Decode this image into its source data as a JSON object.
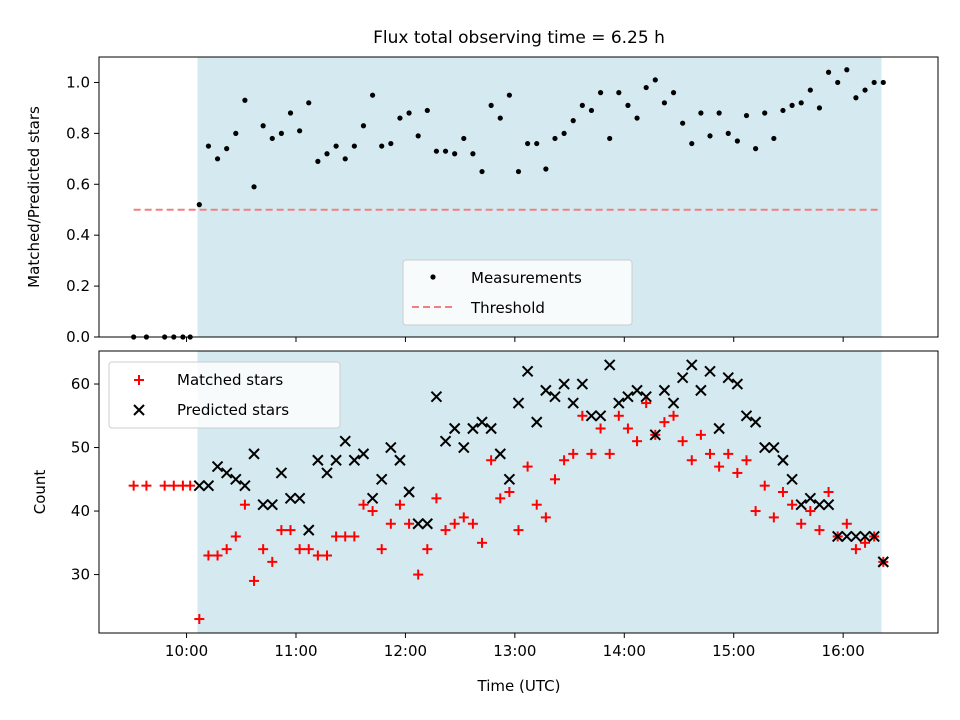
{
  "figure": {
    "title": "Flux total observing time = 6.25 h",
    "xlabel": "Time (UTC)",
    "x_ticks": [
      "10:00",
      "11:00",
      "12:00",
      "13:00",
      "14:00",
      "15:00",
      "16:00"
    ],
    "shade_color": "#d4eaf0",
    "observing_window": [
      "10:06",
      "16:21"
    ]
  },
  "chart_data": [
    {
      "type": "scatter",
      "title": "Flux total observing time = 6.25 h",
      "ylabel": "Matched/Predicted stars",
      "xlabel": "",
      "xlim": [
        "09:12",
        "16:52"
      ],
      "ylim": [
        0,
        1.1
      ],
      "y_ticks": [
        "0.0",
        "0.2",
        "0.4",
        "0.6",
        "0.8",
        "1.0"
      ],
      "grid": false,
      "legend_position": "lower-center",
      "series": [
        {
          "name": "Measurements",
          "color": "#000000",
          "marker": "dot",
          "points": [
            [
              "09:31",
              0.0
            ],
            [
              "09:38",
              0.0
            ],
            [
              "09:48",
              0.0
            ],
            [
              "09:53",
              0.0
            ],
            [
              "09:58",
              0.0
            ],
            [
              "10:02",
              0.0
            ],
            [
              "10:07",
              0.52
            ],
            [
              "10:12",
              0.75
            ],
            [
              "10:17",
              0.7
            ],
            [
              "10:22",
              0.74
            ],
            [
              "10:27",
              0.8
            ],
            [
              "10:32",
              0.93
            ],
            [
              "10:37",
              0.59
            ],
            [
              "10:42",
              0.83
            ],
            [
              "10:47",
              0.78
            ],
            [
              "10:52",
              0.8
            ],
            [
              "10:57",
              0.88
            ],
            [
              "11:02",
              0.81
            ],
            [
              "11:07",
              0.92
            ],
            [
              "11:12",
              0.69
            ],
            [
              "11:17",
              0.72
            ],
            [
              "11:22",
              0.75
            ],
            [
              "11:27",
              0.7
            ],
            [
              "11:32",
              0.75
            ],
            [
              "11:37",
              0.83
            ],
            [
              "11:42",
              0.95
            ],
            [
              "11:47",
              0.75
            ],
            [
              "11:52",
              0.76
            ],
            [
              "11:57",
              0.86
            ],
            [
              "12:02",
              0.88
            ],
            [
              "12:07",
              0.79
            ],
            [
              "12:12",
              0.89
            ],
            [
              "12:17",
              0.73
            ],
            [
              "12:22",
              0.73
            ],
            [
              "12:27",
              0.72
            ],
            [
              "12:32",
              0.78
            ],
            [
              "12:37",
              0.72
            ],
            [
              "12:42",
              0.65
            ],
            [
              "12:47",
              0.91
            ],
            [
              "12:52",
              0.86
            ],
            [
              "12:57",
              0.95
            ],
            [
              "13:02",
              0.65
            ],
            [
              "13:07",
              0.76
            ],
            [
              "13:12",
              0.76
            ],
            [
              "13:17",
              0.66
            ],
            [
              "13:22",
              0.78
            ],
            [
              "13:27",
              0.8
            ],
            [
              "13:32",
              0.85
            ],
            [
              "13:37",
              0.91
            ],
            [
              "13:42",
              0.89
            ],
            [
              "13:47",
              0.96
            ],
            [
              "13:52",
              0.78
            ],
            [
              "13:57",
              0.96
            ],
            [
              "14:02",
              0.91
            ],
            [
              "14:07",
              0.86
            ],
            [
              "14:12",
              0.98
            ],
            [
              "14:17",
              1.01
            ],
            [
              "14:22",
              0.92
            ],
            [
              "14:27",
              0.96
            ],
            [
              "14:32",
              0.84
            ],
            [
              "14:37",
              0.76
            ],
            [
              "14:42",
              0.88
            ],
            [
              "14:47",
              0.79
            ],
            [
              "14:52",
              0.88
            ],
            [
              "14:57",
              0.8
            ],
            [
              "15:02",
              0.77
            ],
            [
              "15:07",
              0.87
            ],
            [
              "15:12",
              0.74
            ],
            [
              "15:17",
              0.88
            ],
            [
              "15:22",
              0.78
            ],
            [
              "15:27",
              0.89
            ],
            [
              "15:32",
              0.91
            ],
            [
              "15:37",
              0.92
            ],
            [
              "15:42",
              0.97
            ],
            [
              "15:47",
              0.9
            ],
            [
              "15:52",
              1.04
            ],
            [
              "15:57",
              1.0
            ],
            [
              "16:02",
              1.05
            ],
            [
              "16:07",
              0.94
            ],
            [
              "16:12",
              0.97
            ],
            [
              "16:17",
              1.0
            ],
            [
              "16:22",
              1.0
            ]
          ]
        },
        {
          "name": "Threshold",
          "type": "line",
          "style": "dashed",
          "color": "#f08080",
          "points": [
            [
              "09:31",
              0.5
            ],
            [
              "16:20",
              0.5
            ]
          ]
        }
      ]
    },
    {
      "type": "scatter",
      "title": "",
      "ylabel": "Count",
      "xlabel": "Time (UTC)",
      "xlim": [
        "09:12",
        "16:52"
      ],
      "ylim": [
        20.8,
        65.2
      ],
      "y_ticks": [
        "30",
        "40",
        "50",
        "60"
      ],
      "grid": false,
      "legend_position": "upper-left",
      "series": [
        {
          "name": "Matched stars",
          "color": "#ff0000",
          "marker": "plus",
          "points": [
            [
              "09:31",
              44
            ],
            [
              "09:38",
              44
            ],
            [
              "09:48",
              44
            ],
            [
              "09:53",
              44
            ],
            [
              "09:58",
              44
            ],
            [
              "10:02",
              44
            ],
            [
              "10:07",
              23
            ],
            [
              "10:12",
              33
            ],
            [
              "10:17",
              33
            ],
            [
              "10:22",
              34
            ],
            [
              "10:27",
              36
            ],
            [
              "10:32",
              41
            ],
            [
              "10:37",
              29
            ],
            [
              "10:42",
              34
            ],
            [
              "10:47",
              32
            ],
            [
              "10:52",
              37
            ],
            [
              "10:57",
              37
            ],
            [
              "11:02",
              34
            ],
            [
              "11:07",
              34
            ],
            [
              "11:12",
              33
            ],
            [
              "11:17",
              33
            ],
            [
              "11:22",
              36
            ],
            [
              "11:27",
              36
            ],
            [
              "11:32",
              36
            ],
            [
              "11:37",
              41
            ],
            [
              "11:42",
              40
            ],
            [
              "11:47",
              34
            ],
            [
              "11:52",
              38
            ],
            [
              "11:57",
              41
            ],
            [
              "12:02",
              38
            ],
            [
              "12:07",
              30
            ],
            [
              "12:12",
              34
            ],
            [
              "12:17",
              42
            ],
            [
              "12:22",
              37
            ],
            [
              "12:27",
              38
            ],
            [
              "12:32",
              39
            ],
            [
              "12:37",
              38
            ],
            [
              "12:42",
              35
            ],
            [
              "12:47",
              48
            ],
            [
              "12:52",
              42
            ],
            [
              "12:57",
              43
            ],
            [
              "13:02",
              37
            ],
            [
              "13:07",
              47
            ],
            [
              "13:12",
              41
            ],
            [
              "13:17",
              39
            ],
            [
              "13:22",
              45
            ],
            [
              "13:27",
              48
            ],
            [
              "13:32",
              49
            ],
            [
              "13:37",
              55
            ],
            [
              "13:42",
              49
            ],
            [
              "13:47",
              53
            ],
            [
              "13:52",
              49
            ],
            [
              "13:57",
              55
            ],
            [
              "14:02",
              53
            ],
            [
              "14:07",
              51
            ],
            [
              "14:12",
              57
            ],
            [
              "14:17",
              52
            ],
            [
              "14:22",
              54
            ],
            [
              "14:27",
              55
            ],
            [
              "14:32",
              51
            ],
            [
              "14:37",
              48
            ],
            [
              "14:42",
              52
            ],
            [
              "14:47",
              49
            ],
            [
              "14:52",
              47
            ],
            [
              "14:57",
              49
            ],
            [
              "15:02",
              46
            ],
            [
              "15:07",
              48
            ],
            [
              "15:12",
              40
            ],
            [
              "15:17",
              44
            ],
            [
              "15:22",
              39
            ],
            [
              "15:27",
              43
            ],
            [
              "15:32",
              41
            ],
            [
              "15:37",
              38
            ],
            [
              "15:42",
              40
            ],
            [
              "15:47",
              37
            ],
            [
              "15:52",
              43
            ],
            [
              "15:57",
              36
            ],
            [
              "16:02",
              38
            ],
            [
              "16:07",
              34
            ],
            [
              "16:12",
              35
            ],
            [
              "16:17",
              36
            ],
            [
              "16:22",
              32
            ]
          ]
        },
        {
          "name": "Predicted stars",
          "color": "#000000",
          "marker": "x",
          "points": [
            [
              "10:07",
              44
            ],
            [
              "10:12",
              44
            ],
            [
              "10:17",
              47
            ],
            [
              "10:22",
              46
            ],
            [
              "10:27",
              45
            ],
            [
              "10:32",
              44
            ],
            [
              "10:37",
              49
            ],
            [
              "10:42",
              41
            ],
            [
              "10:47",
              41
            ],
            [
              "10:52",
              46
            ],
            [
              "10:57",
              42
            ],
            [
              "11:02",
              42
            ],
            [
              "11:07",
              37
            ],
            [
              "11:12",
              48
            ],
            [
              "11:17",
              46
            ],
            [
              "11:22",
              48
            ],
            [
              "11:27",
              51
            ],
            [
              "11:32",
              48
            ],
            [
              "11:37",
              49
            ],
            [
              "11:42",
              42
            ],
            [
              "11:47",
              45
            ],
            [
              "11:52",
              50
            ],
            [
              "11:57",
              48
            ],
            [
              "12:02",
              43
            ],
            [
              "12:07",
              38
            ],
            [
              "12:12",
              38
            ],
            [
              "12:17",
              58
            ],
            [
              "12:22",
              51
            ],
            [
              "12:27",
              53
            ],
            [
              "12:32",
              50
            ],
            [
              "12:37",
              53
            ],
            [
              "12:42",
              54
            ],
            [
              "12:47",
              53
            ],
            [
              "12:52",
              49
            ],
            [
              "12:57",
              45
            ],
            [
              "13:02",
              57
            ],
            [
              "13:07",
              62
            ],
            [
              "13:12",
              54
            ],
            [
              "13:17",
              59
            ],
            [
              "13:22",
              58
            ],
            [
              "13:27",
              60
            ],
            [
              "13:32",
              57
            ],
            [
              "13:37",
              60
            ],
            [
              "13:42",
              55
            ],
            [
              "13:47",
              55
            ],
            [
              "13:52",
              63
            ],
            [
              "13:57",
              57
            ],
            [
              "14:02",
              58
            ],
            [
              "14:07",
              59
            ],
            [
              "14:12",
              58
            ],
            [
              "14:17",
              52
            ],
            [
              "14:22",
              59
            ],
            [
              "14:27",
              57
            ],
            [
              "14:32",
              61
            ],
            [
              "14:37",
              63
            ],
            [
              "14:42",
              59
            ],
            [
              "14:47",
              62
            ],
            [
              "14:52",
              53
            ],
            [
              "14:57",
              61
            ],
            [
              "15:02",
              60
            ],
            [
              "15:07",
              55
            ],
            [
              "15:12",
              54
            ],
            [
              "15:17",
              50
            ],
            [
              "15:22",
              50
            ],
            [
              "15:27",
              48
            ],
            [
              "15:32",
              45
            ],
            [
              "15:37",
              41
            ],
            [
              "15:42",
              42
            ],
            [
              "15:47",
              41
            ],
            [
              "15:52",
              41
            ],
            [
              "15:57",
              36
            ],
            [
              "16:02",
              36
            ],
            [
              "16:07",
              36
            ],
            [
              "16:12",
              36
            ],
            [
              "16:17",
              36
            ],
            [
              "16:22",
              32
            ]
          ]
        }
      ]
    }
  ]
}
